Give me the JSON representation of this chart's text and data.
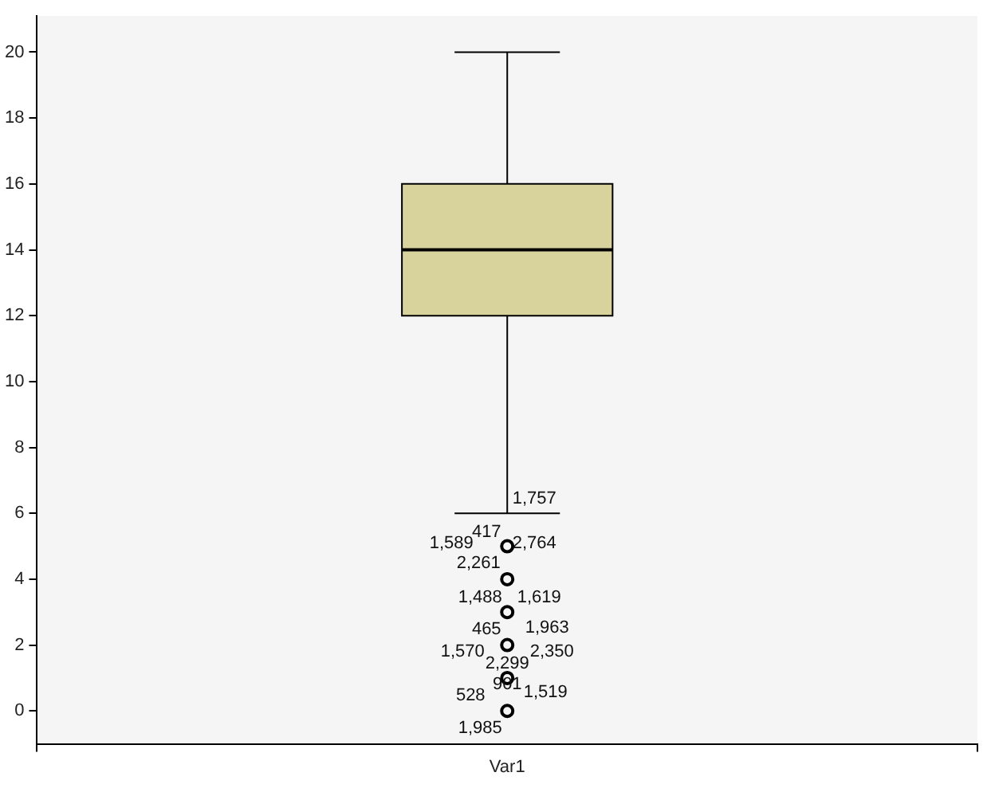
{
  "chart_data": {
    "type": "box",
    "categories": [
      "Var1"
    ],
    "boxes": [
      {
        "low": 6,
        "q1": 12,
        "median": 14,
        "q3": 16,
        "high": 20,
        "outliers": [
          5,
          4,
          3,
          2,
          1,
          0
        ]
      }
    ],
    "color": "#d8d29c",
    "marker": "circle",
    "ylim": [
      -1,
      21.1
    ],
    "yticks": [
      0,
      2,
      4,
      6,
      8,
      10,
      12,
      14,
      16,
      18,
      20
    ],
    "annotations": [
      "1,757",
      "417",
      "1,589",
      "2,764",
      "2,261",
      "1,488",
      "1,619",
      "465",
      "1,963",
      "1,570",
      "2,350",
      "2,299",
      "901",
      "528",
      "1,519",
      "1,985"
    ]
  }
}
